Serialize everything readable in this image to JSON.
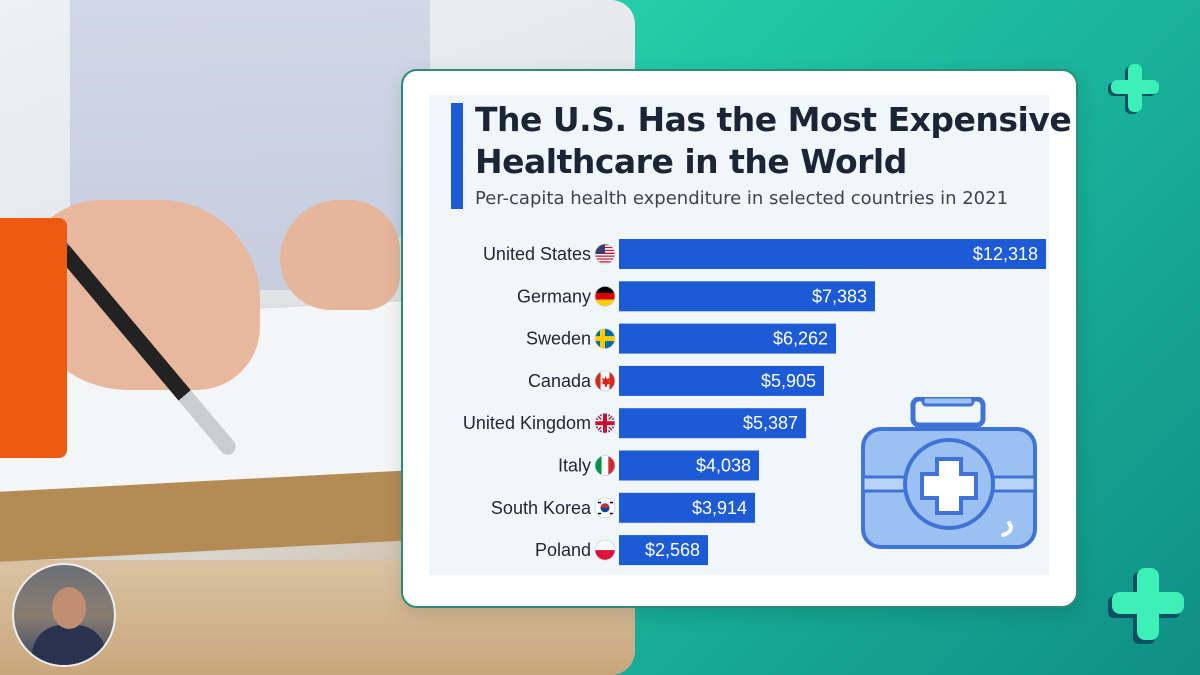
{
  "chart_data": {
    "type": "bar",
    "orientation": "horizontal",
    "title": "The U.S. Has the Most Expensive Healthcare in the World",
    "subtitle": "Per-capita health expenditure in selected countries in 2021",
    "categories": [
      "United States",
      "Germany",
      "Sweden",
      "Canada",
      "United Kingdom",
      "Italy",
      "South Korea",
      "Poland"
    ],
    "values": [
      12318,
      7383,
      6262,
      5905,
      5387,
      4038,
      3914,
      2568
    ],
    "value_labels": [
      "$12,318",
      "$7,383",
      "$6,262",
      "$5,905",
      "$5,387",
      "$4,038",
      "$3,914",
      "$2,568"
    ],
    "flags": [
      "us-flag-icon",
      "germany-flag-icon",
      "sweden-flag-icon",
      "canada-flag-icon",
      "uk-flag-icon",
      "italy-flag-icon",
      "south-korea-flag-icon",
      "poland-flag-icon"
    ],
    "xlim": [
      0,
      12318
    ],
    "bar_color": "#1c5ad6"
  },
  "colors": {
    "accent": "#1c5ad6",
    "card_border": "#2d8c78",
    "background_green": "#1fc3a3",
    "orange": "#ef5a13",
    "plus": "#3cf0b7"
  },
  "icons": {
    "decor_top": "plus-icon",
    "decor_bottom": "plus-icon",
    "illustration": "medical-kit-icon"
  }
}
